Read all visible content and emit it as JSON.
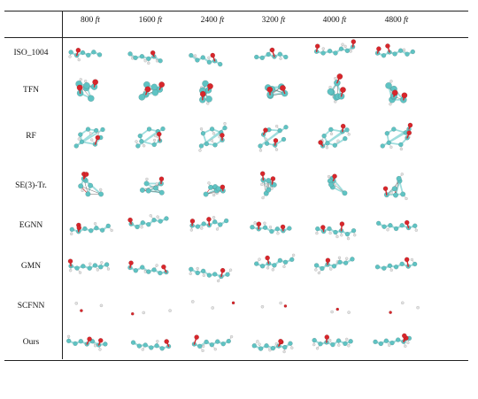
{
  "figure": {
    "columns": [
      {
        "value": "800",
        "unit": "ft"
      },
      {
        "value": "1600",
        "unit": "ft"
      },
      {
        "value": "2400",
        "unit": "ft"
      },
      {
        "value": "3200",
        "unit": "ft"
      },
      {
        "value": "4000",
        "unit": "ft"
      },
      {
        "value": "4800",
        "unit": "ft"
      }
    ],
    "rows": [
      {
        "label": "ISO_1004",
        "style": "chain"
      },
      {
        "label": "TFN",
        "style": "cluster"
      },
      {
        "label": "RF",
        "style": "ring"
      },
      {
        "label": "SE(3)-Tr.",
        "style": "collapsed"
      },
      {
        "label": "EGNN",
        "style": "chain"
      },
      {
        "label": "GMN",
        "style": "chain"
      },
      {
        "label": "SCFNN",
        "style": "sparse"
      },
      {
        "label": "Ours",
        "style": "chain"
      }
    ],
    "colors": {
      "carbon": "#5fc3c3",
      "oxygen": "#d8262b",
      "hydrogen": "#e2e2e2",
      "bond": "#9fdede"
    }
  }
}
